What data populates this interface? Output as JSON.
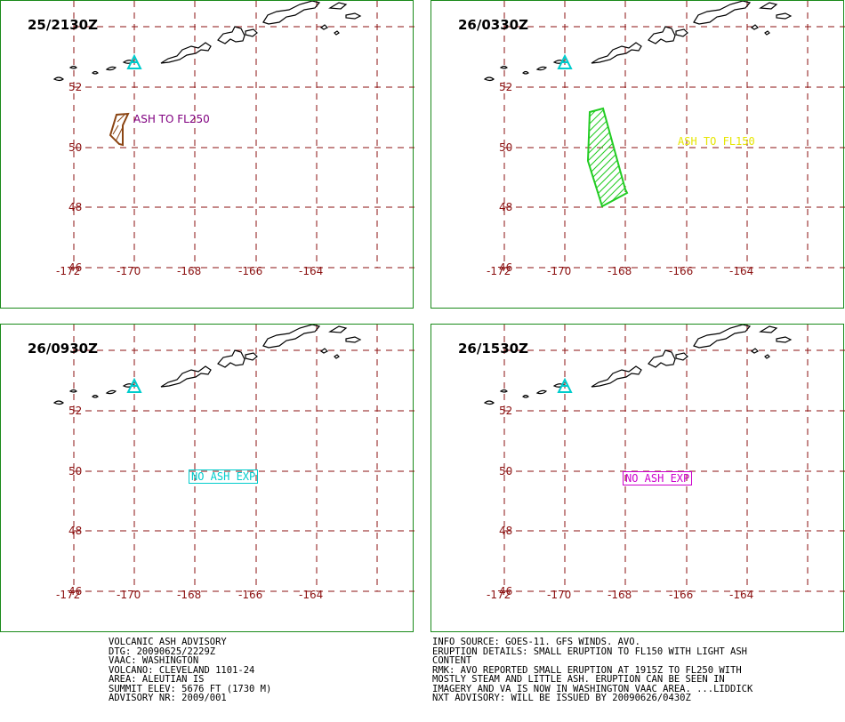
{
  "panels": [
    {
      "time": "25/2130Z",
      "ash_label": "ASH TO FL250",
      "ash_color": "#800080",
      "polygon_color": "#8b4513"
    },
    {
      "time": "26/0330Z",
      "ash_label": "ASH TO FL150",
      "ash_color": "#e6e600",
      "polygon_color": "#22cc22"
    },
    {
      "time": "26/0930Z",
      "ash_label": "NO ASH EXP",
      "ash_color": "#00cccc"
    },
    {
      "time": "26/1530Z",
      "ash_label": "NO ASH EXP",
      "ash_color": "#cc00cc"
    }
  ],
  "grid": {
    "lat_labels": [
      "52",
      "50",
      "48",
      "46"
    ],
    "lon_labels": [
      "-172",
      "-170",
      "-168",
      "-166",
      "-164"
    ],
    "line_color": "#8b1010"
  },
  "volcano_marker_color": "#00cccc",
  "advisory": {
    "left_lines": [
      "VOLCANIC ASH ADVISORY",
      "DTG: 20090625/2229Z",
      "VAAC: WASHINGTON",
      "VOLCANO: CLEVELAND 1101-24",
      "AREA: ALEUTIAN IS",
      "SUMMIT ELEV: 5676 FT (1730 M)",
      "ADVISORY NR: 2009/001"
    ],
    "right_lines": [
      "INFO SOURCE: GOES-11. GFS WINDS. AVO.",
      "ERUPTION DETAILS: SMALL ERUPTION TO FL150 WITH LIGHT ASH",
      "CONTENT",
      "RMK: AVO REPORTED SMALL ERUPTION AT 1915Z TO FL250 WITH",
      "MOSTLY STEAM AND LITTLE ASH. ERUPTION CAN BE SEEN IN",
      "IMAGERY AND VA IS NOW IN WASHINGTON VAAC AREA. ...LIDDICK",
      "NXT ADVISORY: WILL BE ISSUED BY 20090626/0430Z"
    ]
  }
}
